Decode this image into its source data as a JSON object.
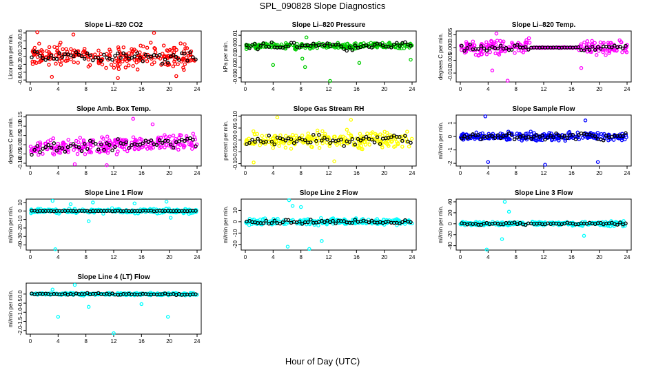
{
  "page": {
    "title": "SPL_090828  Slope Diagnostics",
    "x_label": "Hour of Day (UTC)"
  },
  "chart_data": [
    {
      "type": "scatter",
      "title": "Slope Li–820 CO2",
      "ylabel": "Licor ppm per min.",
      "color": "#ff0000",
      "xlim": [
        0,
        24
      ],
      "ylim": [
        -0.65,
        0.65
      ],
      "x_ticks": [
        0,
        4,
        8,
        12,
        16,
        20,
        24
      ],
      "y_ticks": [
        -0.6,
        -0.4,
        -0.2,
        0.0,
        0.2,
        0.4,
        0.6
      ],
      "y_tick_labels": [
        "-0.6",
        "-0.4",
        "-0.2",
        "0.0",
        "0.2",
        "0.4",
        "0.6"
      ],
      "spread": 0.24,
      "black_spread": 0.18,
      "outliers": [
        [
          1.0,
          0.62
        ],
        [
          6.2,
          0.56
        ],
        [
          17.8,
          0.6
        ],
        [
          12.6,
          -0.55
        ],
        [
          3.1,
          -0.52
        ],
        [
          21.0,
          -0.5
        ]
      ]
    },
    {
      "type": "scatter",
      "title": "Slope Li–820 Pressure",
      "ylabel": "kPa per min.",
      "color": "#00cc00",
      "xlim": [
        0,
        24
      ],
      "ylim": [
        -0.034,
        0.014
      ],
      "x_ticks": [
        0,
        4,
        8,
        12,
        16,
        20,
        24
      ],
      "y_ticks": [
        -0.03,
        -0.02,
        -0.01,
        0.0,
        0.01
      ],
      "y_tick_labels": [
        "-0.03",
        "-0.02",
        "-0.01",
        "0.00",
        "0.01"
      ],
      "spread": 0.0025,
      "black_spread": 0.004,
      "outliers": [
        [
          4.0,
          -0.018
        ],
        [
          8.2,
          -0.012
        ],
        [
          8.8,
          0.008
        ],
        [
          12.2,
          -0.033
        ],
        [
          16.4,
          -0.016
        ],
        [
          23.8,
          -0.013
        ],
        [
          8.6,
          -0.02
        ]
      ]
    },
    {
      "type": "scatter",
      "title": "Slope Li–820 Temp.",
      "ylabel": "degrees C per min.",
      "color": "#ff00ff",
      "xlim": [
        0,
        24
      ],
      "ylim": [
        -0.0135,
        0.0065
      ],
      "x_ticks": [
        0,
        4,
        8,
        12,
        16,
        20,
        24
      ],
      "y_ticks": [
        -0.01,
        -0.005,
        0.0,
        0.005
      ],
      "y_tick_labels": [
        "-0.010",
        "-0.005",
        "0.000",
        "0.005"
      ],
      "spread": 0.0025,
      "black_spread": 0.0015,
      "flat_range": [
        10,
        17
      ],
      "outliers": [
        [
          6.8,
          -0.013
        ],
        [
          5.2,
          0.0055
        ],
        [
          4.6,
          -0.009
        ],
        [
          17.4,
          -0.008
        ]
      ]
    },
    {
      "type": "scatter",
      "title": "Slope Amb. Box Temp.",
      "ylabel": "degrees C per min.",
      "color": "#ff00ff",
      "xlim": [
        0,
        24
      ],
      "ylim": [
        -0.115,
        0.16
      ],
      "x_ticks": [
        0,
        4,
        8,
        12,
        16,
        20,
        24
      ],
      "y_ticks": [
        -0.1,
        -0.05,
        0.0,
        0.05,
        0.1,
        0.15
      ],
      "y_tick_labels": [
        "-0.10",
        "-0.05",
        "0.00",
        "0.05",
        "0.10",
        "0.15"
      ],
      "spread": 0.04,
      "black_spread": 0.03,
      "trend": 0.0018,
      "outliers": [
        [
          14.8,
          0.14
        ],
        [
          11.0,
          -0.11
        ],
        [
          6.4,
          -0.105
        ],
        [
          17.6,
          0.11
        ]
      ]
    },
    {
      "type": "scatter",
      "title": "Slope Gas Stream RH",
      "ylabel": "percent per min.",
      "color": "#ffff00",
      "xlim": [
        0,
        24
      ],
      "ylim": [
        -0.11,
        0.105
      ],
      "x_ticks": [
        0,
        4,
        8,
        12,
        16,
        20,
        24
      ],
      "y_ticks": [
        -0.1,
        -0.05,
        0.0,
        0.05,
        0.1
      ],
      "y_tick_labels": [
        "-0.10",
        "-0.05",
        "0.00",
        "0.05",
        "0.10"
      ],
      "spread": 0.03,
      "black_spread": 0.022,
      "outliers": [
        [
          4.6,
          0.095
        ],
        [
          1.2,
          -0.095
        ],
        [
          15.2,
          0.085
        ],
        [
          12.8,
          -0.09
        ]
      ]
    },
    {
      "type": "scatter",
      "title": "Slope Sample Flow",
      "ylabel": "ml/min per min.",
      "color": "#0000ff",
      "xlim": [
        0,
        24
      ],
      "ylim": [
        -2.2,
        1.6
      ],
      "x_ticks": [
        0,
        4,
        8,
        12,
        16,
        20,
        24
      ],
      "y_ticks": [
        -2,
        -1,
        0,
        1
      ],
      "y_tick_labels": [
        "-2",
        "-1",
        "0",
        "1"
      ],
      "spread": 0.25,
      "black_spread": 0.3,
      "outliers": [
        [
          4.0,
          -1.9
        ],
        [
          12.2,
          -2.1
        ],
        [
          19.8,
          -1.9
        ],
        [
          3.6,
          1.5
        ],
        [
          18.0,
          1.2
        ]
      ]
    },
    {
      "type": "scatter",
      "title": "Slope Line 1 Flow",
      "ylabel": "ml/min per min.",
      "color": "#00ffff",
      "xlim": [
        0,
        24
      ],
      "ylim": [
        -46,
        14
      ],
      "x_ticks": [
        0,
        4,
        8,
        12,
        16,
        20,
        24
      ],
      "y_ticks": [
        -40,
        -30,
        -20,
        -10,
        0,
        10
      ],
      "y_tick_labels": [
        "-40",
        "-30",
        "-20",
        "-10",
        "0",
        "10"
      ],
      "spread": 2.5,
      "black_spread": 0.5,
      "outliers": [
        [
          3.6,
          -45
        ],
        [
          3.2,
          12
        ],
        [
          8.4,
          -12
        ],
        [
          9.0,
          10
        ],
        [
          19.6,
          11
        ],
        [
          20.2,
          -8
        ],
        [
          15.0,
          9
        ],
        [
          5.8,
          8
        ]
      ]
    },
    {
      "type": "scatter",
      "title": "Slope Line 2 Flow",
      "ylabel": "ml/min per min.",
      "color": "#00ffff",
      "xlim": [
        0,
        24
      ],
      "ylim": [
        -25,
        20
      ],
      "x_ticks": [
        0,
        4,
        8,
        12,
        16,
        20,
        24
      ],
      "y_ticks": [
        -20,
        -10,
        0,
        10
      ],
      "y_tick_labels": [
        "-20",
        "-10",
        "0",
        "10"
      ],
      "spread": 2.2,
      "black_spread": 2.0,
      "outliers": [
        [
          6.3,
          19
        ],
        [
          6.1,
          -22
        ],
        [
          9.2,
          -24
        ],
        [
          8.0,
          13
        ],
        [
          11.0,
          -17
        ],
        [
          6.8,
          14
        ]
      ]
    },
    {
      "type": "scatter",
      "title": "Slope Line 3 Flow",
      "ylabel": "ml/min per min.",
      "color": "#00ffff",
      "xlim": [
        0,
        24
      ],
      "ylim": [
        -48,
        45
      ],
      "x_ticks": [
        0,
        4,
        8,
        12,
        16,
        20,
        24
      ],
      "y_ticks": [
        -40,
        -20,
        0,
        20,
        40
      ],
      "y_tick_labels": [
        "-40",
        "-20",
        "0",
        "20",
        "40"
      ],
      "spread": 3.5,
      "black_spread": 2.5,
      "outliers": [
        [
          6.4,
          40
        ],
        [
          3.8,
          -47
        ],
        [
          6.0,
          -28
        ],
        [
          17.8,
          -22
        ],
        [
          7.0,
          22
        ]
      ]
    },
    {
      "type": "scatter",
      "title": "Slope Line 4 (LT) Flow",
      "ylabel": "ml/min per min.",
      "color": "#00ffff",
      "xlim": [
        0,
        24
      ],
      "ylim": [
        -2.2,
        0.6
      ],
      "x_ticks": [
        0,
        4,
        8,
        12,
        16,
        20,
        24
      ],
      "y_ticks": [
        -2,
        -1.5,
        -1,
        -0.5,
        0.0
      ],
      "y_tick_labels": [
        "-2.0",
        "-1.5",
        "-1.0",
        "-0.5",
        "0.0"
      ],
      "spread": 0.06,
      "black_spread": 0.05,
      "outliers": [
        [
          12.0,
          -2.15
        ],
        [
          4.0,
          -1.25
        ],
        [
          6.4,
          0.5
        ],
        [
          8.4,
          -0.7
        ],
        [
          19.8,
          -1.25
        ],
        [
          16.0,
          -0.55
        ],
        [
          3.2,
          0.25
        ]
      ]
    }
  ]
}
